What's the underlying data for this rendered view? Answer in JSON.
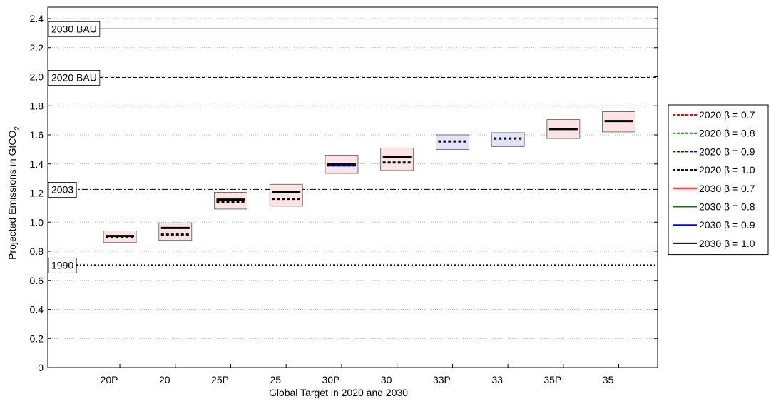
{
  "chart_data": {
    "type": "range-box",
    "xlabel": "Global Target in 2020 and 2030",
    "ylabel": "Projected Emissions in GtCO",
    "ylabel_sub": "2",
    "categories": [
      "20P",
      "20",
      "25P",
      "25",
      "30P",
      "30",
      "33P",
      "33",
      "35P",
      "35"
    ],
    "box_low": [
      0.86,
      0.875,
      1.09,
      1.11,
      1.335,
      1.355,
      1.5,
      1.52,
      1.575,
      1.62
    ],
    "box_high": [
      0.94,
      0.995,
      1.205,
      1.26,
      1.46,
      1.51,
      1.6,
      1.615,
      1.705,
      1.76
    ],
    "box_colors": [
      "#fde3e3",
      "#fde3e3",
      "#fde3e3",
      "#fde3e3",
      "#fde3e3",
      "#fde3e3",
      "#e3e3f7",
      "#e3e3f7",
      "#fde3e3",
      "#fde3e3"
    ],
    "series": [
      {
        "name": "2020 β = 0.7",
        "color": "#ff0000",
        "dash": "dashed"
      },
      {
        "name": "2020 β = 0.8",
        "color": "#008000",
        "dash": "dashed"
      },
      {
        "name": "2020 β = 0.9",
        "color": "#0000ff",
        "dash": "dashed"
      },
      {
        "name": "2020 β = 1.0",
        "color": "#000000",
        "dash": "dashed",
        "values": [
          0.9,
          0.915,
          1.14,
          1.16,
          1.39,
          1.41,
          1.555,
          1.575,
          null,
          null
        ]
      },
      {
        "name": "2030 β = 0.7",
        "color": "#ff0000",
        "dash": "solid"
      },
      {
        "name": "2030 β = 0.8",
        "color": "#008000",
        "dash": "solid"
      },
      {
        "name": "2030 β = 0.9",
        "color": "#0000ff",
        "dash": "solid",
        "values": [
          null,
          null,
          null,
          null,
          1.39,
          null,
          null,
          null,
          null,
          null
        ]
      },
      {
        "name": "2030 β = 1.0",
        "color": "#000000",
        "dash": "solid",
        "values": [
          0.905,
          0.96,
          1.155,
          1.205,
          1.397,
          1.45,
          null,
          null,
          1.64,
          1.695
        ]
      }
    ],
    "reference_lines": [
      {
        "label": "2030 BAU",
        "value": 2.33,
        "style": "solid"
      },
      {
        "label": "2020 BAU",
        "value": 1.995,
        "style": "dashed"
      },
      {
        "label": "2003",
        "value": 1.225,
        "style": "dashdot"
      },
      {
        "label": "1990",
        "value": 0.705,
        "style": "dotted"
      }
    ],
    "ylim": [
      0,
      2.4
    ],
    "yticks": [
      0,
      0.2,
      0.4,
      0.6,
      0.8,
      {
        "value": 1,
        "label": "1.0"
      },
      1.2,
      1.4,
      1.6,
      1.8,
      {
        "value": 2,
        "label": "2.0"
      },
      2.2,
      2.4
    ],
    "grid": true,
    "legend": "right"
  }
}
